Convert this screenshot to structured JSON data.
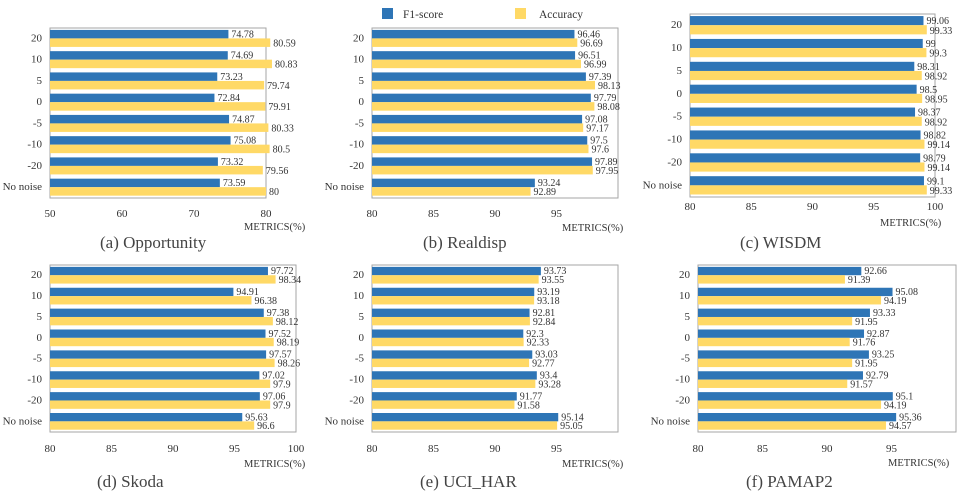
{
  "legend": {
    "f1": "F1-score",
    "acc": "Accuracy"
  },
  "colors": {
    "f1": "#2e75b6",
    "acc": "#ffd966",
    "frame": "#a6a6a6",
    "text": "#333333"
  },
  "chart_data": [
    {
      "type": "bar",
      "orientation": "horizontal",
      "title": "(a) Opportunity",
      "xlabel": "METRICS(%)",
      "categories": [
        "20",
        "10",
        "5",
        "0",
        "-5",
        "-10",
        "-20",
        "No noise"
      ],
      "xlim": [
        50,
        80
      ],
      "xticks": [
        50,
        60,
        70,
        80
      ],
      "series": [
        {
          "name": "F1-score",
          "values": [
            74.78,
            74.69,
            73.23,
            72.84,
            74.87,
            75.08,
            73.32,
            73.59
          ],
          "labels": [
            "74.78",
            "74.69",
            "73.23",
            "72.84",
            "74.87",
            "75.08",
            "73.32",
            "73.59"
          ]
        },
        {
          "name": "Accuracy",
          "values": [
            80.59,
            80.83,
            79.74,
            79.91,
            80.33,
            80.5,
            79.56,
            80
          ],
          "labels": [
            "80.59",
            "80.83",
            "79.74",
            "79.91",
            "80.33",
            "80.5",
            "79.56",
            "80"
          ]
        }
      ]
    },
    {
      "type": "bar",
      "orientation": "horizontal",
      "title": "(b) Realdisp",
      "xlabel": "METRICS(%)",
      "categories": [
        "20",
        "10",
        "5",
        "0",
        "-5",
        "-10",
        "-20",
        "No noise"
      ],
      "xlim": [
        80,
        100
      ],
      "xticks": [
        80,
        85,
        90,
        95
      ],
      "series": [
        {
          "name": "F1-score",
          "values": [
            96.46,
            96.51,
            97.39,
            97.79,
            97.08,
            97.5,
            97.89,
            93.24
          ],
          "labels": [
            "96.46",
            "96.51",
            "97.39",
            "97.79",
            "97.08",
            "97.5",
            "97.89",
            "93.24"
          ]
        },
        {
          "name": "Accuracy",
          "values": [
            96.69,
            96.99,
            98.13,
            98.08,
            97.17,
            97.6,
            97.95,
            92.89
          ],
          "labels": [
            "96.69",
            "96.99",
            "98.13",
            "98.08",
            "97.17",
            "97.6",
            "97.95",
            "92.89"
          ]
        }
      ]
    },
    {
      "type": "bar",
      "orientation": "horizontal",
      "title": "(c) WISDM",
      "xlabel": "METRICS(%)",
      "categories": [
        "20",
        "10",
        "5",
        "0",
        "-5",
        "-10",
        "-20",
        "No noise"
      ],
      "xlim": [
        80,
        100
      ],
      "xticks": [
        80,
        85,
        90,
        95,
        100
      ],
      "series": [
        {
          "name": "F1-score",
          "values": [
            99.06,
            99,
            98.31,
            98.5,
            98.37,
            98.82,
            98.79,
            99.1
          ],
          "labels": [
            "99.06",
            "99",
            "98.31",
            "98.5",
            "98.37",
            "98.82",
            "98.79",
            "99.1"
          ]
        },
        {
          "name": "Accuracy",
          "values": [
            99.33,
            99.3,
            98.92,
            98.95,
            98.92,
            99.14,
            99.14,
            99.33
          ],
          "labels": [
            "99.33",
            "99.3",
            "98.92",
            "98.95",
            "98.92",
            "99.14",
            "99.14",
            "99.33"
          ]
        }
      ]
    },
    {
      "type": "bar",
      "orientation": "horizontal",
      "title": "(d) Skoda",
      "xlabel": "METRICS(%)",
      "categories": [
        "20",
        "10",
        "5",
        "0",
        "-5",
        "-10",
        "-20",
        "No noise"
      ],
      "xlim": [
        80,
        100
      ],
      "xticks": [
        80,
        85,
        90,
        95,
        100
      ],
      "series": [
        {
          "name": "F1-score",
          "values": [
            97.72,
            94.91,
            97.38,
            97.52,
            97.57,
            97.02,
            97.06,
            95.63
          ],
          "labels": [
            "97.72",
            "94.91",
            "97.38",
            "97.52",
            "97.57",
            "97.02",
            "97.06",
            "95.63"
          ]
        },
        {
          "name": "Accuracy",
          "values": [
            98.34,
            96.38,
            98.12,
            98.19,
            98.26,
            97.9,
            97.9,
            96.6
          ],
          "labels": [
            "98.34",
            "96.38",
            "98.12",
            "98.19",
            "98.26",
            "97.9",
            "97.9",
            "96.6"
          ]
        }
      ]
    },
    {
      "type": "bar",
      "orientation": "horizontal",
      "title": "(e) UCI_HAR",
      "xlabel": "METRICS(%)",
      "categories": [
        "20",
        "10",
        "5",
        "0",
        "-5",
        "-10",
        "-20",
        "No noise"
      ],
      "xlim": [
        80,
        100
      ],
      "xticks": [
        80,
        85,
        90,
        95
      ],
      "series": [
        {
          "name": "F1-score",
          "values": [
            93.73,
            93.19,
            92.81,
            92.3,
            93.03,
            93.4,
            91.77,
            95.14
          ],
          "labels": [
            "93.73",
            "93.19",
            "92.81",
            "92.3",
            "93.03",
            "93.4",
            "91.77",
            "95.14"
          ]
        },
        {
          "name": "Accuracy",
          "values": [
            93.55,
            93.18,
            92.84,
            92.33,
            92.77,
            93.28,
            91.58,
            95.05
          ],
          "labels": [
            "93.55",
            "93.18",
            "92.84",
            "92.33",
            "92.77",
            "93.28",
            "91.58",
            "95.05"
          ]
        }
      ]
    },
    {
      "type": "bar",
      "orientation": "horizontal",
      "title": "(f) PAMAP2",
      "xlabel": "METRICS(%)",
      "categories": [
        "20",
        "10",
        "5",
        "0",
        "-5",
        "-10",
        "-20",
        "No noise"
      ],
      "xlim": [
        80,
        100
      ],
      "xticks": [
        80,
        85,
        90,
        95
      ],
      "series": [
        {
          "name": "F1-score",
          "values": [
            92.66,
            95.08,
            93.33,
            92.87,
            93.25,
            92.79,
            95.1,
            95.36
          ],
          "labels": [
            "92.66",
            "95.08",
            "93.33",
            "92.87",
            "93.25",
            "92.79",
            "95.1",
            "95.36"
          ]
        },
        {
          "name": "Accuracy",
          "values": [
            91.39,
            94.19,
            91.95,
            91.76,
            91.95,
            91.57,
            94.19,
            94.57
          ],
          "labels": [
            "91.39",
            "94.19",
            "91.95",
            "91.76",
            "91.95",
            "91.57",
            "94.19",
            "94.57"
          ]
        }
      ]
    }
  ]
}
